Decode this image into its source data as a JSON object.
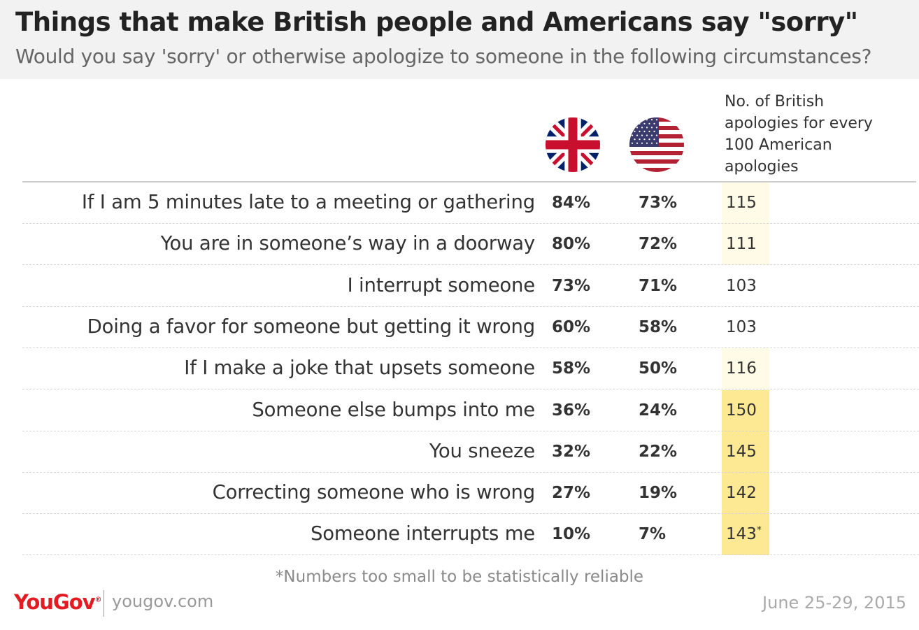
{
  "title": "Things that make British people and Americans say \"sorry\"",
  "subtitle": "Would you say 'sorry' or otherwise apologize to someone in the following circumstances?",
  "icons": {
    "uk": "uk-flag-icon",
    "us": "us-flag-icon"
  },
  "ratio_header_lines": [
    "No. of British",
    "apologies for every",
    "100 American",
    "apologies"
  ],
  "colors": {
    "highlight_light": "#fffbe6",
    "highlight_strong": "#fde894",
    "brand_red": "#e31b23"
  },
  "chart_data": {
    "type": "table",
    "columns": [
      "",
      "UK",
      "US",
      "No. of British apologies for every 100 American apologies"
    ],
    "rows": [
      {
        "label": "If I am 5 minutes late to a meeting or gathering",
        "uk": "84%",
        "us": "73%",
        "ratio": "115",
        "note": ""
      },
      {
        "label": "You are in someone’s way in a doorway",
        "uk": "80%",
        "us": "72%",
        "ratio": "111",
        "note": ""
      },
      {
        "label": "I interrupt someone",
        "uk": "73%",
        "us": "71%",
        "ratio": "103",
        "note": ""
      },
      {
        "label": "Doing a favor for someone but getting it wrong",
        "uk": "60%",
        "us": "58%",
        "ratio": "103",
        "note": ""
      },
      {
        "label": "If I make a joke that upsets someone",
        "uk": "58%",
        "us": "50%",
        "ratio": "116",
        "note": ""
      },
      {
        "label": "Someone else bumps into me",
        "uk": "36%",
        "us": "24%",
        "ratio": "150",
        "note": ""
      },
      {
        "label": "You sneeze",
        "uk": "32%",
        "us": "22%",
        "ratio": "145",
        "note": ""
      },
      {
        "label": "Correcting someone who is wrong",
        "uk": "27%",
        "us": "19%",
        "ratio": "142",
        "note": ""
      },
      {
        "label": "Someone interrupts me",
        "uk": "10%",
        "us": "7%",
        "ratio": "143",
        "note": "*"
      }
    ]
  },
  "footnote": "*Numbers too small to be statistically reliable",
  "footer": {
    "logo": "YouGov",
    "url": "yougov.com",
    "date": "June 25-29, 2015"
  }
}
